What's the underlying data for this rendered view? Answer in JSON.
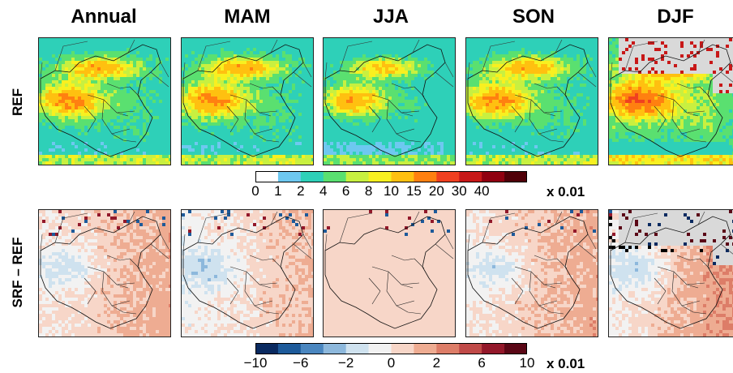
{
  "columns": [
    "Annual",
    "MAM",
    "JJA",
    "SON",
    "DJF"
  ],
  "rows": [
    {
      "label": "REF",
      "kind": "ref"
    },
    {
      "label": "SRF – REF",
      "kind": "diff"
    }
  ],
  "colorbars": [
    {
      "colors": [
        "#ffffff",
        "#6ec8f0",
        "#2ed0b8",
        "#5ae070",
        "#c8f040",
        "#f8f020",
        "#ffc010",
        "#ff8010",
        "#f04020",
        "#c81818",
        "#900010",
        "#500008"
      ],
      "tick_labels": [
        "0",
        "1",
        "2",
        "4",
        "6",
        "8",
        "10",
        "15",
        "20",
        "30",
        "40"
      ],
      "unit": "x 0.01"
    },
    {
      "colors": [
        "#0a2a60",
        "#1d5a9a",
        "#4a86bf",
        "#8db8dc",
        "#cfe2ef",
        "#f2f2f2",
        "#f7d6c8",
        "#eeac92",
        "#dd7d68",
        "#c04a48",
        "#93182a",
        "#5a0716"
      ],
      "tick_labels": [
        "−10",
        "−6",
        "−2",
        "0",
        "2",
        "6",
        "10"
      ],
      "unit": "x 0.01"
    }
  ],
  "chart_data": {
    "type": "heatmap",
    "title": "",
    "panels_columns": [
      "Annual",
      "MAM",
      "JJA",
      "SON",
      "DJF"
    ],
    "panels_rows": [
      "REF",
      "SRF – REF"
    ],
    "ref_colorbar_levels": [
      0,
      1,
      2,
      4,
      6,
      8,
      10,
      15,
      20,
      30,
      40
    ],
    "diff_colorbar_levels": [
      -10,
      -6,
      -2,
      0,
      2,
      6,
      10
    ],
    "scale_factor": "x 0.01",
    "missing_color": "#d9d9d9",
    "missing_in": [
      "DJF"
    ]
  }
}
